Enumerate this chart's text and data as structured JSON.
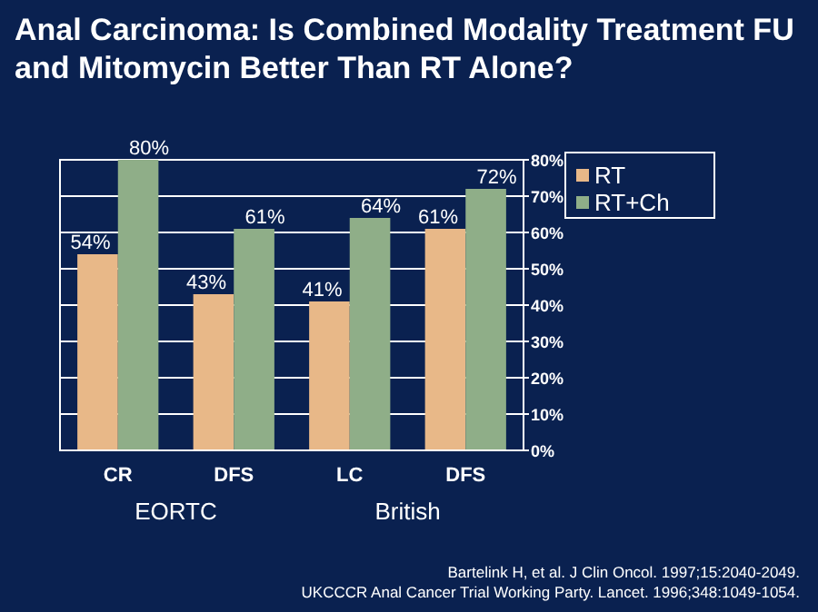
{
  "chart_data": {
    "type": "bar",
    "title": "Anal Carcinoma: Is Combined Modality Treatment FU and Mitomycin Better Than RT Alone?",
    "categories": [
      "CR",
      "DFS",
      "LC",
      "DFS"
    ],
    "series": [
      {
        "name": "RT",
        "color": "#e8b888",
        "values": [
          54,
          43,
          41,
          61
        ],
        "value_labels": [
          "54%",
          "43%",
          "41%",
          "61%"
        ]
      },
      {
        "name": "RT+Ch",
        "color": "#8fae88",
        "values": [
          80,
          61,
          64,
          72
        ],
        "value_labels": [
          "80%",
          "61%",
          "64%",
          "72%"
        ]
      }
    ],
    "ylim": [
      0,
      80
    ],
    "yticks": [
      {
        "value": 0,
        "label": "0%"
      },
      {
        "value": 10,
        "label": "10%"
      },
      {
        "value": 20,
        "label": "20%"
      },
      {
        "value": 30,
        "label": "30%"
      },
      {
        "value": 40,
        "label": "40%"
      },
      {
        "value": 50,
        "label": "50%"
      },
      {
        "value": 60,
        "label": "60%"
      },
      {
        "value": 70,
        "label": "70%"
      },
      {
        "value": 80,
        "label": "80%"
      }
    ],
    "grid": "y",
    "legend": "top right",
    "annotations": [
      "EORTC",
      "British",
      "Bartelink H, et al. J Clin Oncol. 1997;15:2040-2049.",
      "UKCCCR Anal Cancer Trial Working Party. Lancet. 1996;348:1049-1054."
    ]
  }
}
